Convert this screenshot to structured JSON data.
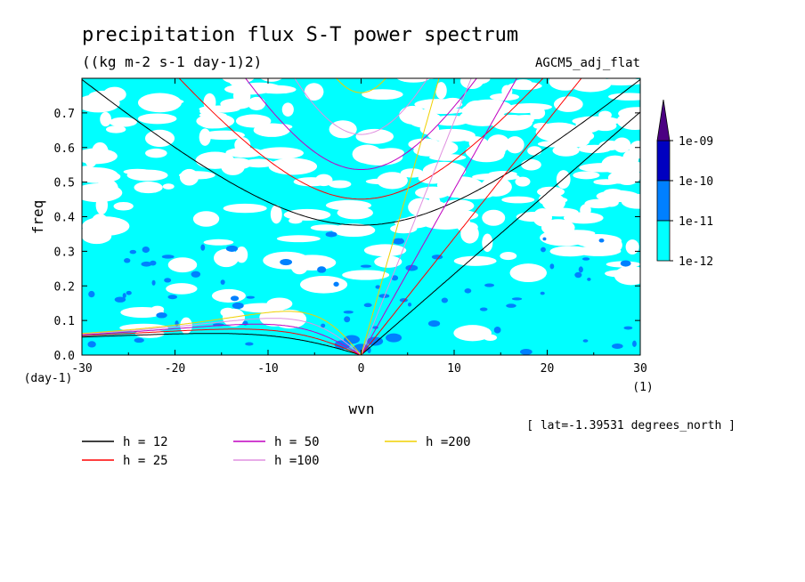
{
  "chart_data": {
    "type": "heatmap",
    "title": "precipitation flux S-T power spectrum",
    "subtitle": "((kg m-2 s-1 day-1)2)",
    "model_label": "AGCM5_adj_flat",
    "xlabel": "wvn",
    "ylabel": "freq",
    "x_unit": "(1)",
    "y_unit": "(day-1)",
    "xlim": [
      -30,
      30
    ],
    "ylim": [
      0,
      0.8
    ],
    "x_ticks": [
      -30,
      -20,
      -10,
      0,
      10,
      20,
      30
    ],
    "y_ticks": [
      0.0,
      0.1,
      0.2,
      0.3,
      0.4,
      0.5,
      0.6,
      0.7
    ],
    "x_tick_labels": [
      "-30",
      "-20",
      "-10",
      "0",
      "10",
      "20",
      "30"
    ],
    "y_tick_labels": [
      "0.0",
      "0.1",
      "0.2",
      "0.3",
      "0.4",
      "0.5",
      "0.6",
      "0.7"
    ],
    "footnote": "[ lat=-1.39531 degrees_north ]",
    "colorbar": {
      "levels": [
        "1e-12",
        "1e-11",
        "1e-10",
        "1e-09"
      ],
      "colors": [
        "#00ffff",
        "#0080ff",
        "#0000c0",
        "#4b0082"
      ],
      "extend": "max"
    },
    "dispersion_curves": [
      {
        "label": "h = 12",
        "h": 12,
        "color": "#000000"
      },
      {
        "label": "h = 25",
        "h": 25,
        "color": "#ff0000"
      },
      {
        "label": "h = 50",
        "h": 50,
        "color": "#c000c0"
      },
      {
        "label": "h =100",
        "h": 100,
        "color": "#e090e0"
      },
      {
        "label": "h =200",
        "h": 200,
        "color": "#f0d000"
      }
    ]
  }
}
